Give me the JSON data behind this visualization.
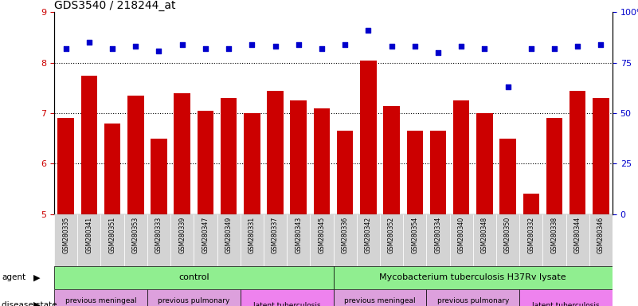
{
  "title": "GDS3540 / 218244_at",
  "categories": [
    "GSM280335",
    "GSM280341",
    "GSM280351",
    "GSM280353",
    "GSM280333",
    "GSM280339",
    "GSM280347",
    "GSM280349",
    "GSM280331",
    "GSM280337",
    "GSM280343",
    "GSM280345",
    "GSM280336",
    "GSM280342",
    "GSM280352",
    "GSM280354",
    "GSM280334",
    "GSM280340",
    "GSM280348",
    "GSM280350",
    "GSM280332",
    "GSM280338",
    "GSM280344",
    "GSM280346"
  ],
  "bar_values": [
    6.9,
    7.75,
    6.8,
    7.35,
    6.5,
    7.4,
    7.05,
    7.3,
    7.0,
    7.45,
    7.25,
    7.1,
    6.65,
    8.05,
    7.15,
    6.65,
    6.65,
    7.25,
    7.0,
    6.5,
    5.4,
    6.9,
    7.45,
    7.3
  ],
  "percentile_values": [
    82,
    85,
    82,
    83,
    81,
    84,
    82,
    82,
    84,
    83,
    84,
    82,
    84,
    91,
    83,
    83,
    80,
    83,
    82,
    63,
    82,
    82,
    83,
    84
  ],
  "bar_color": "#CC0000",
  "dot_color": "#0000CC",
  "ylim_left": [
    5,
    9
  ],
  "ylim_right": [
    0,
    100
  ],
  "yticks_left": [
    5,
    6,
    7,
    8,
    9
  ],
  "yticks_right": [
    0,
    25,
    50,
    75,
    100
  ],
  "agent_groups": [
    {
      "label": "control",
      "start": 0,
      "end": 11,
      "color": "#90EE90"
    },
    {
      "label": "Mycobacterium tuberculosis H37Rv lysate",
      "start": 12,
      "end": 23,
      "color": "#90EE90"
    }
  ],
  "disease_groups": [
    {
      "label": "previous meningeal\ntuberculosis",
      "start": 0,
      "end": 3,
      "color": "#DDA0DD"
    },
    {
      "label": "previous pulmonary\ntuberculosis",
      "start": 4,
      "end": 7,
      "color": "#DDA0DD"
    },
    {
      "label": "latent tuberculosis",
      "start": 8,
      "end": 11,
      "color": "#EE82EE"
    },
    {
      "label": "previous meningeal\ntuberculosis",
      "start": 12,
      "end": 15,
      "color": "#DDA0DD"
    },
    {
      "label": "previous pulmonary\ntuberculosis",
      "start": 16,
      "end": 19,
      "color": "#DDA0DD"
    },
    {
      "label": "latent tuberculosis",
      "start": 20,
      "end": 23,
      "color": "#EE82EE"
    }
  ]
}
